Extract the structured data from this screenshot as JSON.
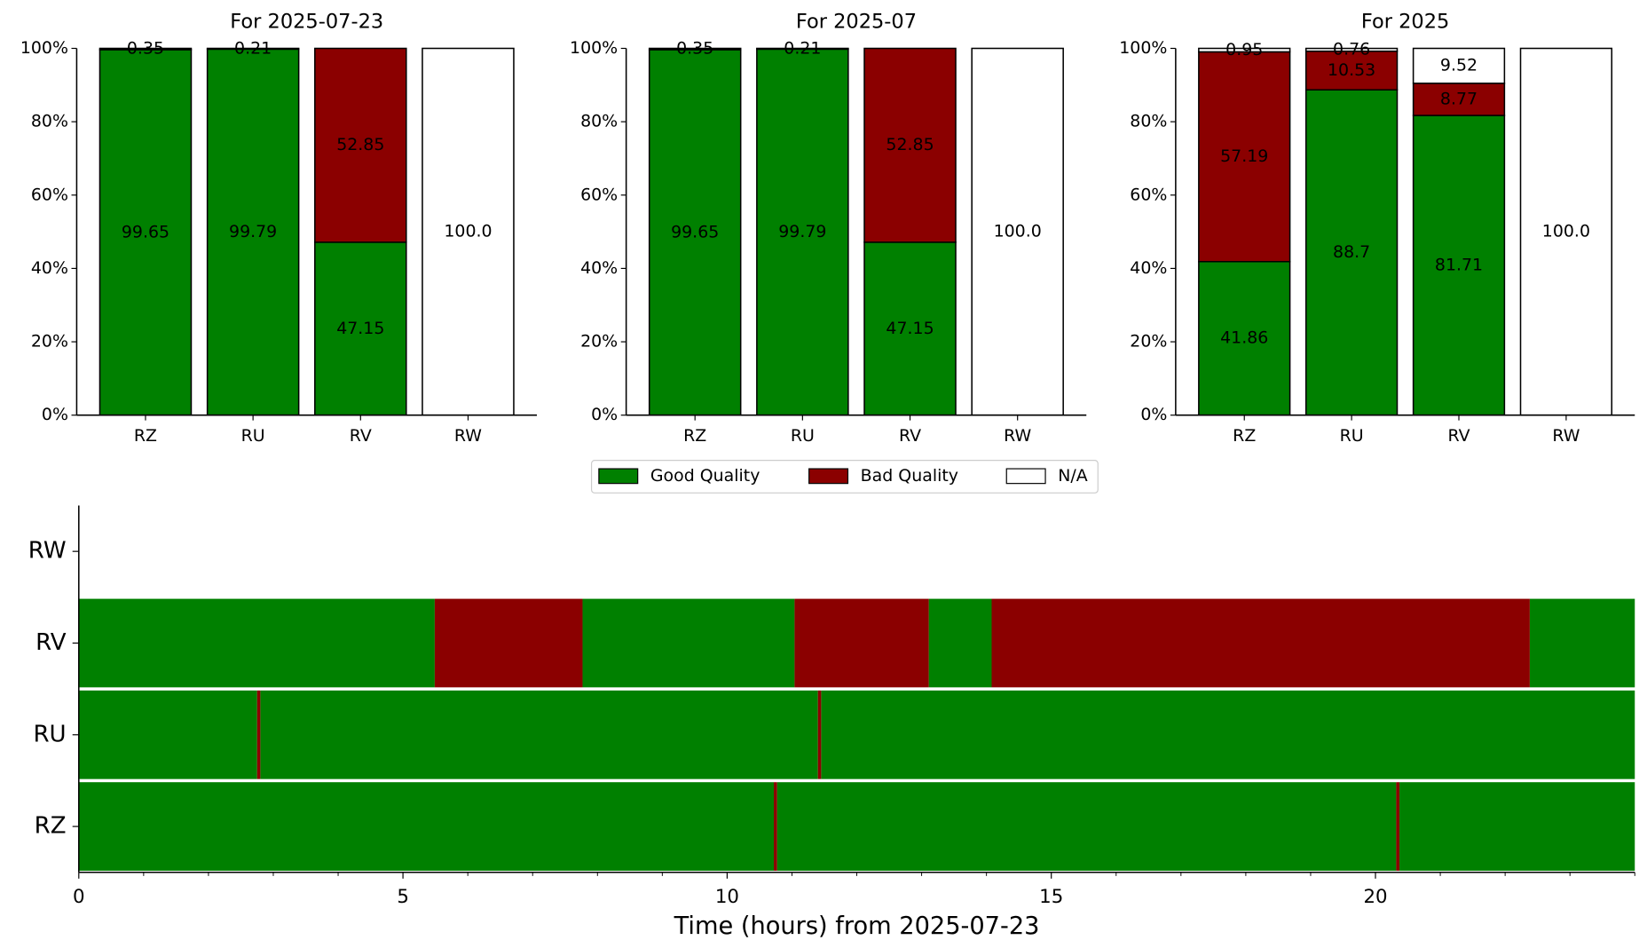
{
  "legend": {
    "loc": "upper center",
    "entries": [
      {
        "name": "Good Quality",
        "color": "#008000"
      },
      {
        "name": "Bad Quality",
        "color": "#8b0000"
      },
      {
        "name": "N/A",
        "color": "#ffffff"
      }
    ]
  },
  "chart_data": [
    {
      "type": "bar",
      "stacked": true,
      "title": "For 2025-07-23",
      "categories": [
        "RZ",
        "RU",
        "RV",
        "RW"
      ],
      "series": [
        {
          "values": [
            99.65,
            99.79,
            47.15,
            0
          ]
        },
        {
          "values": [
            0.35,
            0.21,
            52.85,
            0
          ]
        },
        {
          "values": [
            0,
            0,
            0,
            100.0
          ],
          "value_labels": [
            null,
            null,
            null,
            "100.0"
          ]
        }
      ],
      "ylim": [
        0,
        100
      ],
      "yticks": [
        {
          "value": 0,
          "label": "0%"
        },
        {
          "value": 20,
          "label": "20%"
        },
        {
          "value": 40,
          "label": "40%"
        },
        {
          "value": 60,
          "label": "60%"
        },
        {
          "value": 80,
          "label": "80%"
        },
        {
          "value": 100,
          "label": "100%"
        }
      ]
    },
    {
      "type": "bar",
      "stacked": true,
      "title": "For 2025-07",
      "categories": [
        "RZ",
        "RU",
        "RV",
        "RW"
      ],
      "series": [
        {
          "values": [
            99.65,
            99.79,
            47.15,
            0
          ]
        },
        {
          "values": [
            0.35,
            0.21,
            52.85,
            0
          ]
        },
        {
          "values": [
            0,
            0,
            0,
            100.0
          ],
          "value_labels": [
            null,
            null,
            null,
            "100.0"
          ]
        }
      ],
      "ylim": [
        0,
        100
      ],
      "yticks": [
        {
          "value": 0,
          "label": "0%"
        },
        {
          "value": 20,
          "label": "20%"
        },
        {
          "value": 40,
          "label": "40%"
        },
        {
          "value": 60,
          "label": "60%"
        },
        {
          "value": 80,
          "label": "80%"
        },
        {
          "value": 100,
          "label": "100%"
        }
      ]
    },
    {
      "type": "bar",
      "stacked": true,
      "title": "For 2025",
      "categories": [
        "RZ",
        "RU",
        "RV",
        "RW"
      ],
      "series": [
        {
          "values": [
            41.86,
            88.7,
            81.71,
            0
          ]
        },
        {
          "values": [
            57.19,
            10.53,
            8.77,
            0
          ]
        },
        {
          "values": [
            0.95,
            0.76,
            9.52,
            100.0
          ],
          "value_labels": [
            null,
            null,
            null,
            "100.0"
          ]
        }
      ],
      "ylim": [
        0,
        100
      ],
      "yticks": [
        {
          "value": 0,
          "label": "0%"
        },
        {
          "value": 20,
          "label": "20%"
        },
        {
          "value": 40,
          "label": "40%"
        },
        {
          "value": 60,
          "label": "60%"
        },
        {
          "value": 80,
          "label": "80%"
        },
        {
          "value": 100,
          "label": "100%"
        }
      ]
    },
    {
      "type": "timeline",
      "xlabel": "Time (hours) from 2025-07-23",
      "categories": [
        "RZ",
        "RU",
        "RV",
        "RW"
      ],
      "xlim": [
        0,
        24
      ],
      "xticks": [
        0,
        5,
        10,
        15,
        20
      ],
      "xminorticks": [
        1,
        2,
        3,
        4,
        6,
        7,
        8,
        9,
        11,
        12,
        13,
        14,
        16,
        17,
        18,
        19,
        21,
        22,
        23,
        24
      ],
      "series": [
        {
          "spans": [
            [
              [
                0,
                10.72
              ],
              [
                10.77,
                20.32
              ],
              [
                20.37,
                24
              ]
            ],
            [
              [
                0,
                2.75
              ],
              [
                2.8,
                11.4
              ],
              [
                11.45,
                24
              ]
            ],
            [
              [
                0,
                5.49
              ],
              [
                7.77,
                11.04
              ],
              [
                13.11,
                14.08
              ],
              [
                22.38,
                24
              ]
            ],
            []
          ]
        },
        {
          "spans": [
            [
              [
                10.72,
                10.77
              ],
              [
                20.32,
                20.37
              ]
            ],
            [
              [
                2.75,
                2.8
              ],
              [
                11.4,
                11.45
              ]
            ],
            [
              [
                5.49,
                7.77
              ],
              [
                11.04,
                13.11
              ],
              [
                14.08,
                22.38
              ]
            ],
            []
          ]
        }
      ]
    }
  ]
}
